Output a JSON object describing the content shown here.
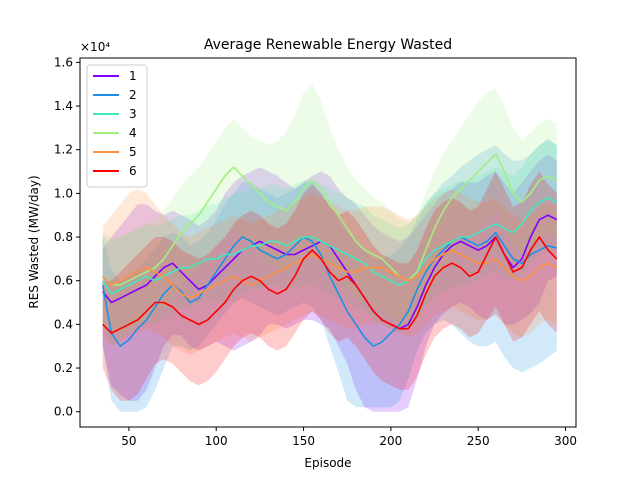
{
  "chart_data": {
    "type": "line",
    "title": "Average Renewable Energy Wasted",
    "xlabel": "Episode",
    "ylabel": "RES Wasted (MW/day)",
    "y_offset_label": "×10⁴",
    "xlim": [
      22,
      306
    ],
    "ylim": [
      -0.07,
      1.62
    ],
    "x_ticks": [
      50,
      100,
      150,
      200,
      250,
      300
    ],
    "y_ticks": [
      0.0,
      0.2,
      0.4,
      0.6,
      0.8,
      1.0,
      1.2,
      1.4,
      1.6
    ],
    "y_tick_labels": [
      "0.0",
      "0.2",
      "0.4",
      "0.6",
      "0.8",
      "1.0",
      "1.2",
      "1.4",
      "1.6"
    ],
    "legend_position": "upper-left",
    "x": [
      35,
      40,
      45,
      50,
      55,
      60,
      65,
      70,
      75,
      80,
      85,
      90,
      95,
      100,
      105,
      110,
      115,
      120,
      125,
      130,
      135,
      140,
      145,
      150,
      155,
      160,
      165,
      170,
      175,
      180,
      185,
      190,
      195,
      200,
      205,
      210,
      215,
      220,
      225,
      230,
      235,
      240,
      245,
      250,
      255,
      260,
      265,
      270,
      275,
      280,
      285,
      290,
      295
    ],
    "series": [
      {
        "name": "1",
        "color": "#8000ff",
        "values": [
          0.55,
          0.5,
          0.52,
          0.54,
          0.56,
          0.58,
          0.62,
          0.66,
          0.68,
          0.64,
          0.6,
          0.56,
          0.58,
          0.62,
          0.66,
          0.7,
          0.74,
          0.76,
          0.78,
          0.76,
          0.74,
          0.72,
          0.72,
          0.74,
          0.76,
          0.78,
          0.76,
          0.7,
          0.64,
          0.58,
          0.52,
          0.46,
          0.42,
          0.4,
          0.38,
          0.4,
          0.48,
          0.58,
          0.66,
          0.72,
          0.76,
          0.78,
          0.76,
          0.74,
          0.76,
          0.8,
          0.72,
          0.66,
          0.7,
          0.8,
          0.88,
          0.9,
          0.88
        ],
        "band_low": [
          0.3,
          0.12,
          0.08,
          0.05,
          0.05,
          0.1,
          0.2,
          0.3,
          0.35,
          0.35,
          0.3,
          0.28,
          0.3,
          0.32,
          0.3,
          0.28,
          0.3,
          0.32,
          0.35,
          0.4,
          0.4,
          0.38,
          0.4,
          0.42,
          0.42,
          0.4,
          0.38,
          0.3,
          0.22,
          0.1,
          0.02,
          0.0,
          0.0,
          0.0,
          0.0,
          0.02,
          0.15,
          0.3,
          0.4,
          0.45,
          0.48,
          0.5,
          0.48,
          0.44,
          0.42,
          0.45,
          0.4,
          0.4,
          0.42,
          0.45,
          0.5,
          0.6,
          0.62
        ],
        "band_high": [
          0.75,
          0.8,
          0.85,
          0.9,
          0.95,
          0.95,
          0.92,
          0.9,
          0.92,
          0.9,
          0.88,
          0.85,
          0.88,
          0.92,
          1.0,
          1.05,
          1.08,
          1.1,
          1.12,
          1.1,
          1.08,
          1.05,
          1.02,
          1.05,
          1.08,
          1.1,
          1.08,
          1.02,
          0.98,
          0.95,
          0.9,
          0.85,
          0.82,
          0.8,
          0.78,
          0.8,
          0.85,
          0.9,
          0.95,
          1.0,
          1.02,
          1.05,
          1.05,
          1.05,
          1.08,
          1.1,
          1.05,
          1.0,
          1.05,
          1.1,
          1.15,
          1.18,
          1.15
        ]
      },
      {
        "name": "2",
        "color": "#1e90e6",
        "values": [
          0.58,
          0.36,
          0.3,
          0.33,
          0.38,
          0.42,
          0.48,
          0.54,
          0.58,
          0.55,
          0.5,
          0.52,
          0.58,
          0.64,
          0.7,
          0.76,
          0.8,
          0.78,
          0.74,
          0.72,
          0.7,
          0.72,
          0.76,
          0.8,
          0.78,
          0.72,
          0.62,
          0.54,
          0.46,
          0.4,
          0.34,
          0.3,
          0.32,
          0.36,
          0.4,
          0.46,
          0.56,
          0.64,
          0.7,
          0.74,
          0.78,
          0.8,
          0.78,
          0.76,
          0.78,
          0.82,
          0.76,
          0.7,
          0.68,
          0.72,
          0.74,
          0.76,
          0.75
        ],
        "band_low": [
          0.3,
          0.05,
          0.0,
          0.0,
          0.0,
          0.02,
          0.1,
          0.2,
          0.3,
          0.3,
          0.28,
          0.3,
          0.35,
          0.4,
          0.45,
          0.5,
          0.52,
          0.5,
          0.48,
          0.46,
          0.44,
          0.46,
          0.48,
          0.5,
          0.48,
          0.42,
          0.3,
          0.18,
          0.05,
          0.02,
          0.02,
          0.02,
          0.02,
          0.02,
          0.05,
          0.15,
          0.28,
          0.36,
          0.4,
          0.42,
          0.4,
          0.36,
          0.32,
          0.3,
          0.3,
          0.32,
          0.25,
          0.2,
          0.18,
          0.2,
          0.22,
          0.25,
          0.28
        ],
        "band_high": [
          0.8,
          0.65,
          0.6,
          0.62,
          0.66,
          0.7,
          0.75,
          0.8,
          0.82,
          0.8,
          0.76,
          0.78,
          0.82,
          0.88,
          0.95,
          1.0,
          1.05,
          1.05,
          1.02,
          1.0,
          0.98,
          1.0,
          1.02,
          1.05,
          1.05,
          1.0,
          0.94,
          0.88,
          0.82,
          0.78,
          0.74,
          0.7,
          0.7,
          0.72,
          0.75,
          0.8,
          0.88,
          0.95,
          1.0,
          1.05,
          1.08,
          1.12,
          1.15,
          1.18,
          1.2,
          1.22,
          1.18,
          1.15,
          1.15,
          1.18,
          1.22,
          1.25,
          1.22
        ]
      },
      {
        "name": "3",
        "color": "#40e8c0",
        "values": [
          0.6,
          0.54,
          0.56,
          0.58,
          0.6,
          0.62,
          0.6,
          0.62,
          0.64,
          0.66,
          0.66,
          0.68,
          0.7,
          0.7,
          0.72,
          0.72,
          0.74,
          0.76,
          0.76,
          0.78,
          0.78,
          0.76,
          0.78,
          0.8,
          0.8,
          0.78,
          0.76,
          0.74,
          0.72,
          0.7,
          0.68,
          0.64,
          0.62,
          0.6,
          0.58,
          0.6,
          0.64,
          0.7,
          0.74,
          0.76,
          0.78,
          0.8,
          0.8,
          0.82,
          0.84,
          0.86,
          0.84,
          0.82,
          0.86,
          0.92,
          0.96,
          0.98,
          0.96
        ],
        "band_low": [
          0.4,
          0.3,
          0.32,
          0.35,
          0.38,
          0.4,
          0.4,
          0.42,
          0.45,
          0.48,
          0.48,
          0.5,
          0.52,
          0.5,
          0.5,
          0.52,
          0.55,
          0.56,
          0.56,
          0.58,
          0.58,
          0.56,
          0.56,
          0.58,
          0.58,
          0.56,
          0.54,
          0.52,
          0.5,
          0.48,
          0.46,
          0.42,
          0.4,
          0.38,
          0.36,
          0.38,
          0.42,
          0.48,
          0.52,
          0.55,
          0.56,
          0.58,
          0.58,
          0.6,
          0.62,
          0.64,
          0.62,
          0.6,
          0.62,
          0.68,
          0.72,
          0.74,
          0.72
        ],
        "band_high": [
          0.8,
          0.78,
          0.8,
          0.82,
          0.84,
          0.86,
          0.85,
          0.86,
          0.88,
          0.9,
          0.9,
          0.92,
          0.95,
          0.95,
          0.98,
          1.0,
          1.0,
          1.02,
          1.02,
          1.04,
          1.04,
          1.02,
          1.04,
          1.06,
          1.06,
          1.04,
          1.02,
          1.0,
          0.98,
          0.96,
          0.94,
          0.9,
          0.88,
          0.86,
          0.84,
          0.86,
          0.9,
          0.96,
          1.0,
          1.02,
          1.04,
          1.06,
          1.06,
          1.08,
          1.1,
          1.12,
          1.1,
          1.08,
          1.12,
          1.18,
          1.22,
          1.24,
          1.22
        ]
      },
      {
        "name": "4",
        "color": "#a0f080",
        "values": [
          0.62,
          0.58,
          0.58,
          0.6,
          0.62,
          0.64,
          0.66,
          0.7,
          0.76,
          0.82,
          0.86,
          0.9,
          0.96,
          1.02,
          1.08,
          1.12,
          1.08,
          1.04,
          1.0,
          0.96,
          0.94,
          0.92,
          0.96,
          1.02,
          1.06,
          1.02,
          0.96,
          0.9,
          0.84,
          0.78,
          0.74,
          0.72,
          0.7,
          0.66,
          0.62,
          0.6,
          0.64,
          0.74,
          0.84,
          0.92,
          0.98,
          1.02,
          1.06,
          1.1,
          1.14,
          1.18,
          1.1,
          1.0,
          0.96,
          1.0,
          1.06,
          1.08,
          1.06
        ],
        "band_low": [
          0.4,
          0.36,
          0.36,
          0.38,
          0.4,
          0.42,
          0.44,
          0.48,
          0.52,
          0.58,
          0.62,
          0.66,
          0.7,
          0.76,
          0.8,
          0.84,
          0.8,
          0.76,
          0.72,
          0.68,
          0.66,
          0.64,
          0.68,
          0.72,
          0.76,
          0.72,
          0.66,
          0.6,
          0.56,
          0.52,
          0.5,
          0.48,
          0.46,
          0.44,
          0.4,
          0.38,
          0.42,
          0.5,
          0.58,
          0.66,
          0.72,
          0.76,
          0.8,
          0.84,
          0.88,
          0.92,
          0.84,
          0.76,
          0.72,
          0.76,
          0.8,
          0.82,
          0.8
        ],
        "band_high": [
          0.82,
          0.8,
          0.8,
          0.82,
          0.84,
          0.86,
          0.88,
          0.92,
          0.98,
          1.04,
          1.08,
          1.12,
          1.18,
          1.24,
          1.3,
          1.34,
          1.3,
          1.26,
          1.24,
          1.22,
          1.24,
          1.28,
          1.36,
          1.46,
          1.5,
          1.42,
          1.3,
          1.2,
          1.12,
          1.06,
          1.02,
          0.98,
          0.96,
          0.92,
          0.88,
          0.86,
          0.9,
          1.0,
          1.1,
          1.18,
          1.24,
          1.3,
          1.36,
          1.42,
          1.46,
          1.48,
          1.4,
          1.3,
          1.24,
          1.28,
          1.32,
          1.34,
          1.32
        ]
      },
      {
        "name": "5",
        "color": "#ff9040",
        "values": [
          0.62,
          0.58,
          0.6,
          0.62,
          0.64,
          0.66,
          0.64,
          0.62,
          0.58,
          0.54,
          0.52,
          0.54,
          0.56,
          0.58,
          0.6,
          0.62,
          0.6,
          0.58,
          0.6,
          0.62,
          0.64,
          0.66,
          0.68,
          0.7,
          0.72,
          0.7,
          0.68,
          0.66,
          0.64,
          0.64,
          0.66,
          0.66,
          0.66,
          0.64,
          0.62,
          0.6,
          0.62,
          0.66,
          0.7,
          0.72,
          0.74,
          0.72,
          0.7,
          0.68,
          0.68,
          0.7,
          0.66,
          0.62,
          0.6,
          0.62,
          0.66,
          0.68,
          0.66
        ],
        "band_low": [
          0.35,
          0.3,
          0.32,
          0.34,
          0.36,
          0.38,
          0.36,
          0.34,
          0.3,
          0.28,
          0.26,
          0.28,
          0.3,
          0.32,
          0.34,
          0.36,
          0.34,
          0.32,
          0.34,
          0.36,
          0.38,
          0.4,
          0.42,
          0.44,
          0.46,
          0.44,
          0.42,
          0.4,
          0.38,
          0.38,
          0.4,
          0.4,
          0.4,
          0.38,
          0.36,
          0.34,
          0.36,
          0.4,
          0.44,
          0.46,
          0.48,
          0.46,
          0.44,
          0.42,
          0.42,
          0.44,
          0.4,
          0.36,
          0.34,
          0.36,
          0.4,
          0.42,
          0.4
        ],
        "band_high": [
          0.85,
          0.9,
          0.95,
          1.0,
          1.02,
          1.0,
          0.95,
          0.9,
          0.86,
          0.82,
          0.8,
          0.82,
          0.84,
          0.86,
          0.88,
          0.9,
          0.88,
          0.86,
          0.88,
          0.9,
          0.92,
          0.94,
          0.96,
          0.98,
          1.0,
          0.98,
          0.96,
          0.94,
          0.92,
          0.92,
          0.94,
          0.94,
          0.94,
          0.92,
          0.9,
          0.88,
          0.9,
          0.94,
          0.98,
          1.0,
          1.02,
          1.0,
          0.98,
          0.96,
          0.96,
          0.98,
          0.94,
          0.9,
          0.88,
          0.9,
          0.94,
          0.96,
          0.94
        ]
      },
      {
        "name": "6",
        "color": "#ff0000",
        "values": [
          0.4,
          0.36,
          0.38,
          0.4,
          0.42,
          0.46,
          0.5,
          0.5,
          0.48,
          0.44,
          0.42,
          0.4,
          0.42,
          0.46,
          0.5,
          0.56,
          0.6,
          0.62,
          0.6,
          0.56,
          0.54,
          0.56,
          0.62,
          0.7,
          0.74,
          0.7,
          0.64,
          0.6,
          0.62,
          0.58,
          0.52,
          0.46,
          0.42,
          0.4,
          0.38,
          0.38,
          0.44,
          0.54,
          0.62,
          0.66,
          0.68,
          0.66,
          0.62,
          0.64,
          0.72,
          0.8,
          0.72,
          0.64,
          0.66,
          0.74,
          0.8,
          0.74,
          0.7
        ],
        "band_low": [
          0.2,
          0.1,
          0.05,
          0.05,
          0.08,
          0.15,
          0.22,
          0.24,
          0.22,
          0.18,
          0.14,
          0.12,
          0.14,
          0.18,
          0.24,
          0.3,
          0.34,
          0.36,
          0.34,
          0.3,
          0.28,
          0.3,
          0.36,
          0.42,
          0.46,
          0.42,
          0.36,
          0.32,
          0.34,
          0.3,
          0.24,
          0.18,
          0.14,
          0.12,
          0.1,
          0.1,
          0.16,
          0.26,
          0.34,
          0.38,
          0.4,
          0.38,
          0.34,
          0.36,
          0.42,
          0.48,
          0.4,
          0.32,
          0.34,
          0.4,
          0.46,
          0.4,
          0.36
        ],
        "band_high": [
          0.6,
          0.6,
          0.64,
          0.68,
          0.72,
          0.76,
          0.8,
          0.8,
          0.78,
          0.74,
          0.72,
          0.7,
          0.72,
          0.76,
          0.8,
          0.86,
          0.9,
          0.92,
          0.9,
          0.86,
          0.84,
          0.86,
          0.92,
          1.0,
          1.04,
          1.0,
          0.94,
          0.9,
          0.92,
          0.88,
          0.82,
          0.76,
          0.72,
          0.7,
          0.68,
          0.68,
          0.74,
          0.84,
          0.92,
          0.96,
          0.98,
          0.96,
          0.92,
          0.94,
          1.02,
          1.1,
          1.02,
          0.94,
          0.96,
          1.04,
          1.1,
          1.04,
          1.0
        ]
      }
    ]
  }
}
